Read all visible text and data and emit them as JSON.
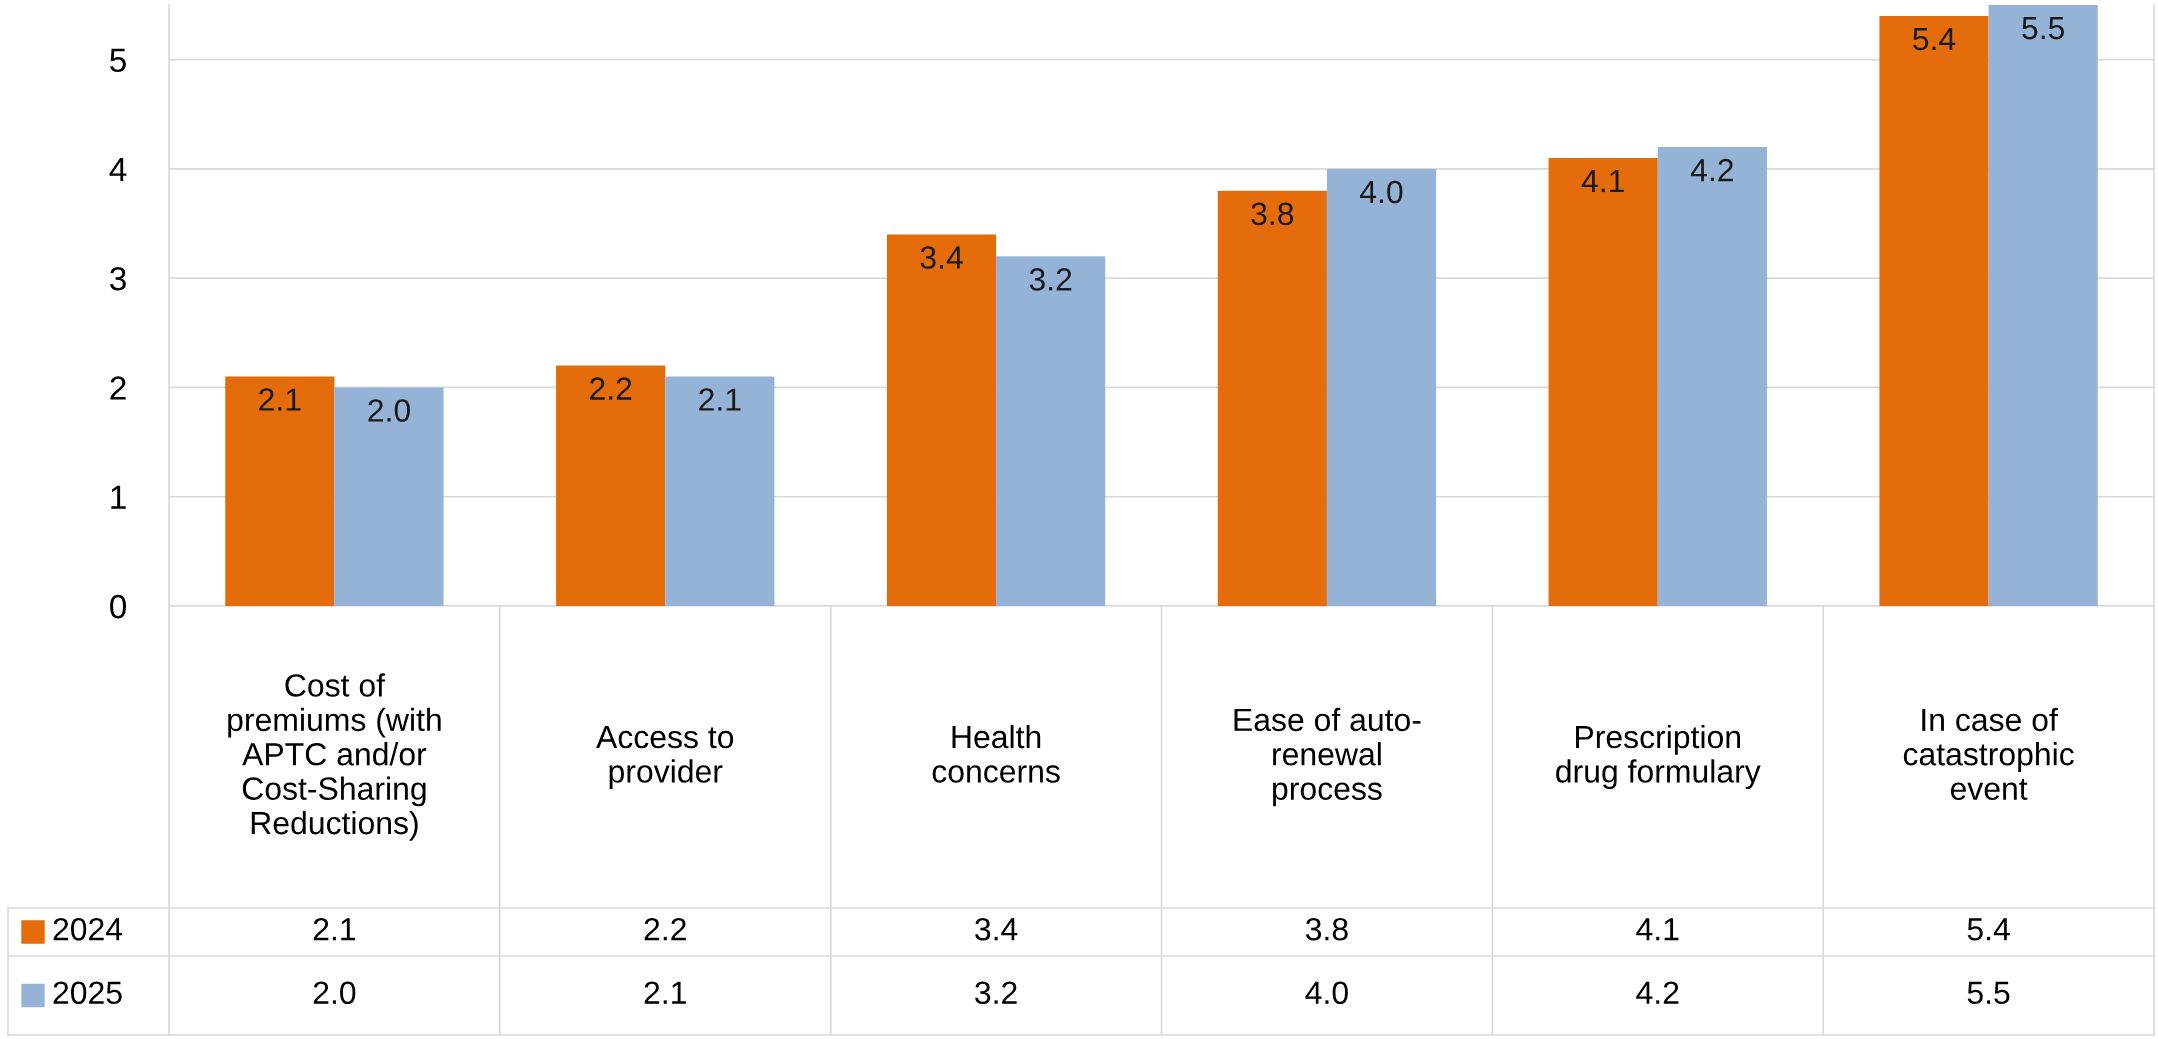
{
  "chart_data": {
    "type": "bar",
    "categories": [
      "Cost of\npremiums (with\nAPTC and/or\nCost-Sharing\nReductions)",
      "Access to\nprovider",
      "Health\nconcerns",
      "Ease of auto-\nrenewal\nprocess",
      "Prescription\ndrug formulary",
      "In case of\ncatastrophic\nevent"
    ],
    "series": [
      {
        "name": "2024",
        "color": "#e46c0a",
        "values": [
          2.1,
          2.2,
          3.4,
          3.8,
          4.1,
          5.4
        ],
        "value_labels": [
          "2.1",
          "2.2",
          "3.4",
          "3.8",
          "4.1",
          "5.4"
        ]
      },
      {
        "name": "2025",
        "color": "#95b3d7",
        "values": [
          2.0,
          2.1,
          3.2,
          4.0,
          4.2,
          5.5
        ],
        "value_labels": [
          "2.0",
          "2.1",
          "3.2",
          "4.0",
          "4.2",
          "5.5"
        ]
      }
    ],
    "ylim": [
      0,
      5.5
    ],
    "yticks": [
      0,
      1,
      2,
      3,
      4,
      5
    ],
    "grid": "y",
    "legend": "bottom"
  }
}
